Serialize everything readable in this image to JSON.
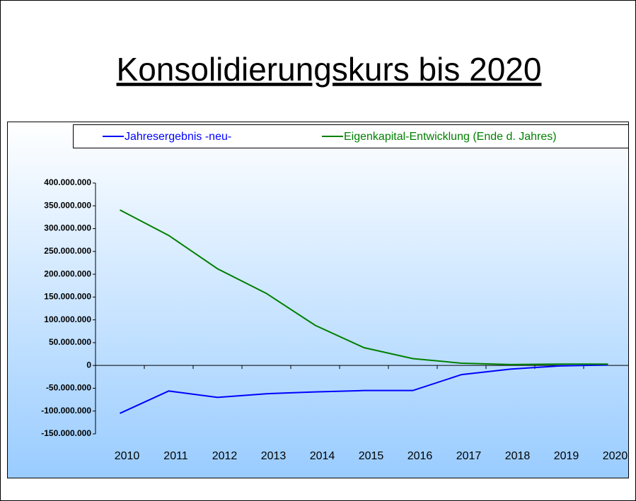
{
  "chart_data": {
    "type": "line",
    "title": "Konsolidierungskurs bis 2020",
    "categories": [
      "2010",
      "2011",
      "2012",
      "2013",
      "2014",
      "2015",
      "2016",
      "2017",
      "2018",
      "2019",
      "2020"
    ],
    "series": [
      {
        "name": "Jahresergebnis -neu-",
        "color": "#0000ff",
        "values": [
          -105000000,
          -56000000,
          -70000000,
          -62000000,
          -58000000,
          -55000000,
          -55000000,
          -20000000,
          -8000000,
          -1000000,
          1000000
        ]
      },
      {
        "name": "Eigenkapital-Entwicklung (Ende d. Jahres)",
        "color": "#008000",
        "values": [
          341000000,
          285000000,
          212000000,
          158000000,
          88000000,
          39000000,
          15000000,
          5000000,
          2000000,
          3000000,
          3000000
        ]
      }
    ],
    "ylim": [
      -150000000,
      400000000
    ],
    "yticks": [
      {
        "value": -150000000,
        "label": "-150.000.000"
      },
      {
        "value": -100000000,
        "label": "-100.000.000"
      },
      {
        "value": -50000000,
        "label": "-50.000.000"
      },
      0,
      {
        "value": 50000000,
        "label": "50.000.000"
      },
      {
        "value": 100000000,
        "label": "100.000.000"
      },
      {
        "value": 150000000,
        "label": "150.000.000"
      },
      {
        "value": 200000000,
        "label": "200.000.000"
      },
      {
        "value": 250000000,
        "label": "250.000.000"
      },
      {
        "value": 300000000,
        "label": "300.000.000"
      },
      {
        "value": 350000000,
        "label": "350.000.000"
      },
      {
        "value": 400000000,
        "label": "400.000.000"
      }
    ],
    "legend": "top"
  }
}
